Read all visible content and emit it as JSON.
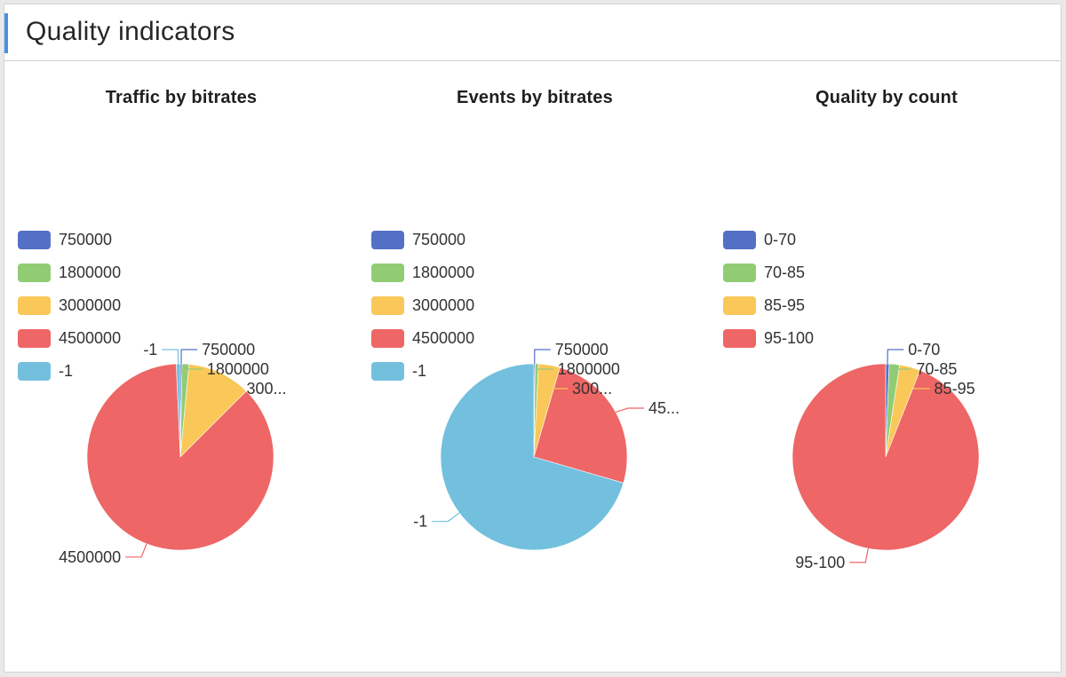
{
  "header": {
    "title": "Quality indicators"
  },
  "colors": {
    "blue": "#5470c6",
    "green": "#91cc75",
    "yellow": "#fac858",
    "red": "#ee6666",
    "cyan": "#73c0de"
  },
  "chart_data": [
    {
      "type": "pie",
      "title": "Traffic by bitrates",
      "legend_position": "left",
      "legend": [
        "750000",
        "1800000",
        "3000000",
        "4500000",
        "-1"
      ],
      "slices": [
        {
          "name": "750000",
          "label": "750000",
          "value": 0.3,
          "color": "#5470c6"
        },
        {
          "name": "1800000",
          "label": "1800000",
          "value": 1.2,
          "color": "#91cc75"
        },
        {
          "name": "3000000",
          "label": "300...",
          "value": 11.0,
          "color": "#fac858"
        },
        {
          "name": "4500000",
          "label": "4500000",
          "value": 86.8,
          "color": "#ee6666"
        },
        {
          "name": "-1",
          "label": "-1",
          "value": 0.7,
          "color": "#73c0de"
        }
      ]
    },
    {
      "type": "pie",
      "title": "Events by bitrates",
      "legend_position": "left",
      "legend": [
        "750000",
        "1800000",
        "3000000",
        "4500000",
        "-1"
      ],
      "slices": [
        {
          "name": "750000",
          "label": "750000",
          "value": 0.2,
          "color": "#5470c6"
        },
        {
          "name": "1800000",
          "label": "1800000",
          "value": 0.6,
          "color": "#91cc75"
        },
        {
          "name": "3000000",
          "label": "300...",
          "value": 3.7,
          "color": "#fac858"
        },
        {
          "name": "4500000",
          "label": "45...",
          "value": 25.0,
          "color": "#ee6666"
        },
        {
          "name": "-1",
          "label": "-1",
          "value": 70.5,
          "color": "#73c0de"
        }
      ]
    },
    {
      "type": "pie",
      "title": "Quality by count",
      "legend_position": "left",
      "legend": [
        "0-70",
        "70-85",
        "85-95",
        "95-100"
      ],
      "slices": [
        {
          "name": "0-70",
          "label": "0-70",
          "value": 0.6,
          "color": "#5470c6"
        },
        {
          "name": "70-85",
          "label": "70-85",
          "value": 1.8,
          "color": "#91cc75"
        },
        {
          "name": "85-95",
          "label": "85-95",
          "value": 3.6,
          "color": "#fac858"
        },
        {
          "name": "95-100",
          "label": "95-100",
          "value": 94.0,
          "color": "#ee6666"
        }
      ]
    }
  ]
}
